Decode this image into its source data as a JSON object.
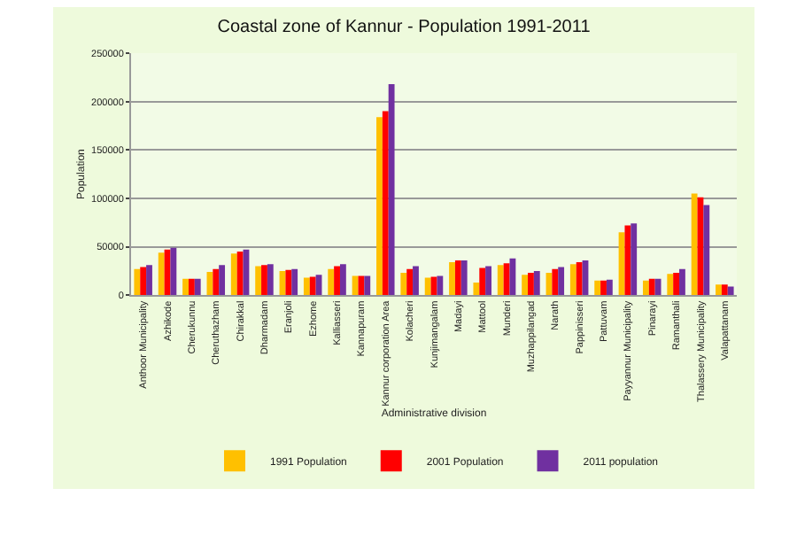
{
  "chart_data": {
    "type": "bar",
    "title": "Coastal zone of Kannur - Population 1991-2011",
    "xlabel": "Administrative division",
    "ylabel": "Population",
    "categories": [
      "Anthoor Municipality",
      "Azhikode",
      "Cherukunnu",
      "Cheruthazham",
      "Chirakkal",
      "Dharmadam",
      "Eranjoli",
      "Ezhome",
      "Kalliasseri",
      "Kannapuram",
      "Kannur corporation Area",
      "Kolacheri",
      "Kunjimangalam",
      "Madayi",
      "Mattool",
      "Munderi",
      "Muzhappilangad",
      "Narath",
      "Pappinisseri",
      "Pattuvam",
      "Payyannur Municipality",
      "Pinarayi",
      "Ramanthali",
      "Thalassery Municipality",
      "Valapattanam"
    ],
    "series": [
      {
        "name": "1991 Population",
        "color": "#ffc000",
        "values": [
          27000,
          44000,
          17000,
          24000,
          43000,
          30000,
          25000,
          18000,
          27000,
          20000,
          184000,
          23000,
          18000,
          34000,
          13000,
          31000,
          21000,
          23000,
          32000,
          15000,
          65000,
          15000,
          22000,
          105000,
          11000
        ]
      },
      {
        "name": "2001 Population",
        "color": "#ff0000",
        "values": [
          29000,
          47000,
          17000,
          27000,
          45000,
          31000,
          26000,
          19000,
          30000,
          20000,
          190000,
          27000,
          19000,
          36000,
          28000,
          33000,
          23000,
          27000,
          34000,
          15000,
          72000,
          17000,
          23000,
          101000,
          11000
        ]
      },
      {
        "name": "2011 population",
        "color": "#7030a0",
        "values": [
          31000,
          49000,
          17000,
          31000,
          47000,
          32000,
          27000,
          21000,
          32000,
          20000,
          218000,
          30000,
          20000,
          36000,
          30000,
          38000,
          25000,
          29000,
          36000,
          16000,
          74000,
          17000,
          27000,
          93000,
          9000
        ]
      }
    ],
    "ylim": [
      0,
      250000
    ],
    "yticks": [
      0,
      50000,
      100000,
      150000,
      200000,
      250000
    ],
    "grid": "y",
    "legend": "bottom"
  }
}
